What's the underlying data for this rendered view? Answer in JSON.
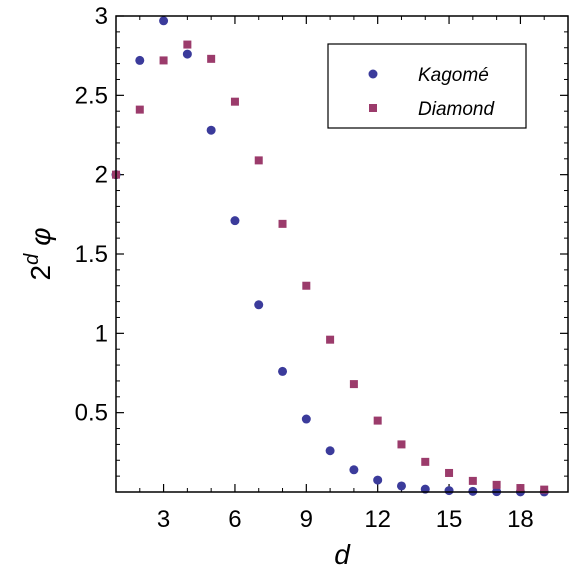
{
  "chart_data": {
    "type": "scatter",
    "title": "",
    "xlabel": "d",
    "ylabel": "2^d φ",
    "ylabel_base": "2",
    "ylabel_exp": "d",
    "ylabel_sym": "φ",
    "xlim": [
      1,
      20
    ],
    "ylim": [
      0,
      3
    ],
    "xticks": [
      3,
      6,
      9,
      12,
      15,
      18
    ],
    "yticks": [
      0.5,
      1,
      1.5,
      2,
      2.5,
      3
    ],
    "xtick_labels": [
      "3",
      "6",
      "9",
      "12",
      "15",
      "18"
    ],
    "ytick_labels": [
      "0.5",
      "1",
      "1.5",
      "2",
      "2.5",
      "3"
    ],
    "grid": false,
    "legend_position": "top-right",
    "series": [
      {
        "name": "Kagomé",
        "marker": "circle",
        "color": "#3b3b9b",
        "x": [
          1,
          2,
          3,
          4,
          5,
          6,
          7,
          8,
          9,
          10,
          11,
          12,
          13,
          14,
          15,
          16,
          17,
          18,
          19
        ],
        "y": [
          2.0,
          2.72,
          2.97,
          2.76,
          2.28,
          1.71,
          1.18,
          0.76,
          0.46,
          0.26,
          0.14,
          0.075,
          0.038,
          0.018,
          0.009,
          0.004,
          0.002,
          0.001,
          0.0005
        ]
      },
      {
        "name": "Diamond",
        "marker": "square",
        "color": "#9b3b6b",
        "x": [
          1,
          2,
          3,
          4,
          5,
          6,
          7,
          8,
          9,
          10,
          11,
          12,
          13,
          14,
          15,
          16,
          17,
          18,
          19
        ],
        "y": [
          2.0,
          2.41,
          2.72,
          2.82,
          2.73,
          2.46,
          2.09,
          1.69,
          1.3,
          0.96,
          0.68,
          0.45,
          0.3,
          0.19,
          0.12,
          0.07,
          0.045,
          0.025,
          0.015
        ]
      }
    ]
  }
}
